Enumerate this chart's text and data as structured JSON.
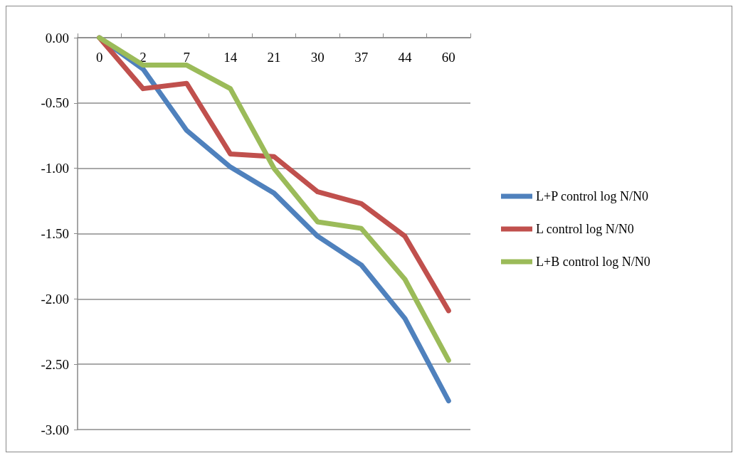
{
  "chart_data": {
    "type": "line",
    "categories": [
      "0",
      "2",
      "7",
      "14",
      "21",
      "30",
      "37",
      "44",
      "60"
    ],
    "series": [
      {
        "name": "L+P control log N/N0",
        "color": "#4f81bd",
        "values": [
          0,
          -0.24,
          -0.71,
          -0.99,
          -1.19,
          -1.52,
          -1.74,
          -2.15,
          -2.78
        ]
      },
      {
        "name": "L control log N/N0",
        "color": "#c0504d",
        "values": [
          0,
          -0.39,
          -0.35,
          -0.89,
          -0.91,
          -1.18,
          -1.27,
          -1.52,
          -2.09
        ]
      },
      {
        "name": "L+B control log N/N0",
        "color": "#9bbb59",
        "values": [
          0,
          -0.21,
          -0.21,
          -0.39,
          -1.0,
          -1.41,
          -1.46,
          -1.85,
          -2.47
        ]
      }
    ],
    "ylim": [
      -3,
      0
    ],
    "yticks": [
      {
        "value": 0,
        "label": "0.00"
      },
      {
        "value": -0.5,
        "label": "-0.50"
      },
      {
        "value": -1,
        "label": "-1.00"
      },
      {
        "value": -1.5,
        "label": "-1.50"
      },
      {
        "value": -2,
        "label": "-2.00"
      },
      {
        "value": -2.5,
        "label": "-2.50"
      },
      {
        "value": -3,
        "label": "-3.00"
      }
    ],
    "grid": "y",
    "legend": "right",
    "marker": "none",
    "line_style": "solid"
  }
}
